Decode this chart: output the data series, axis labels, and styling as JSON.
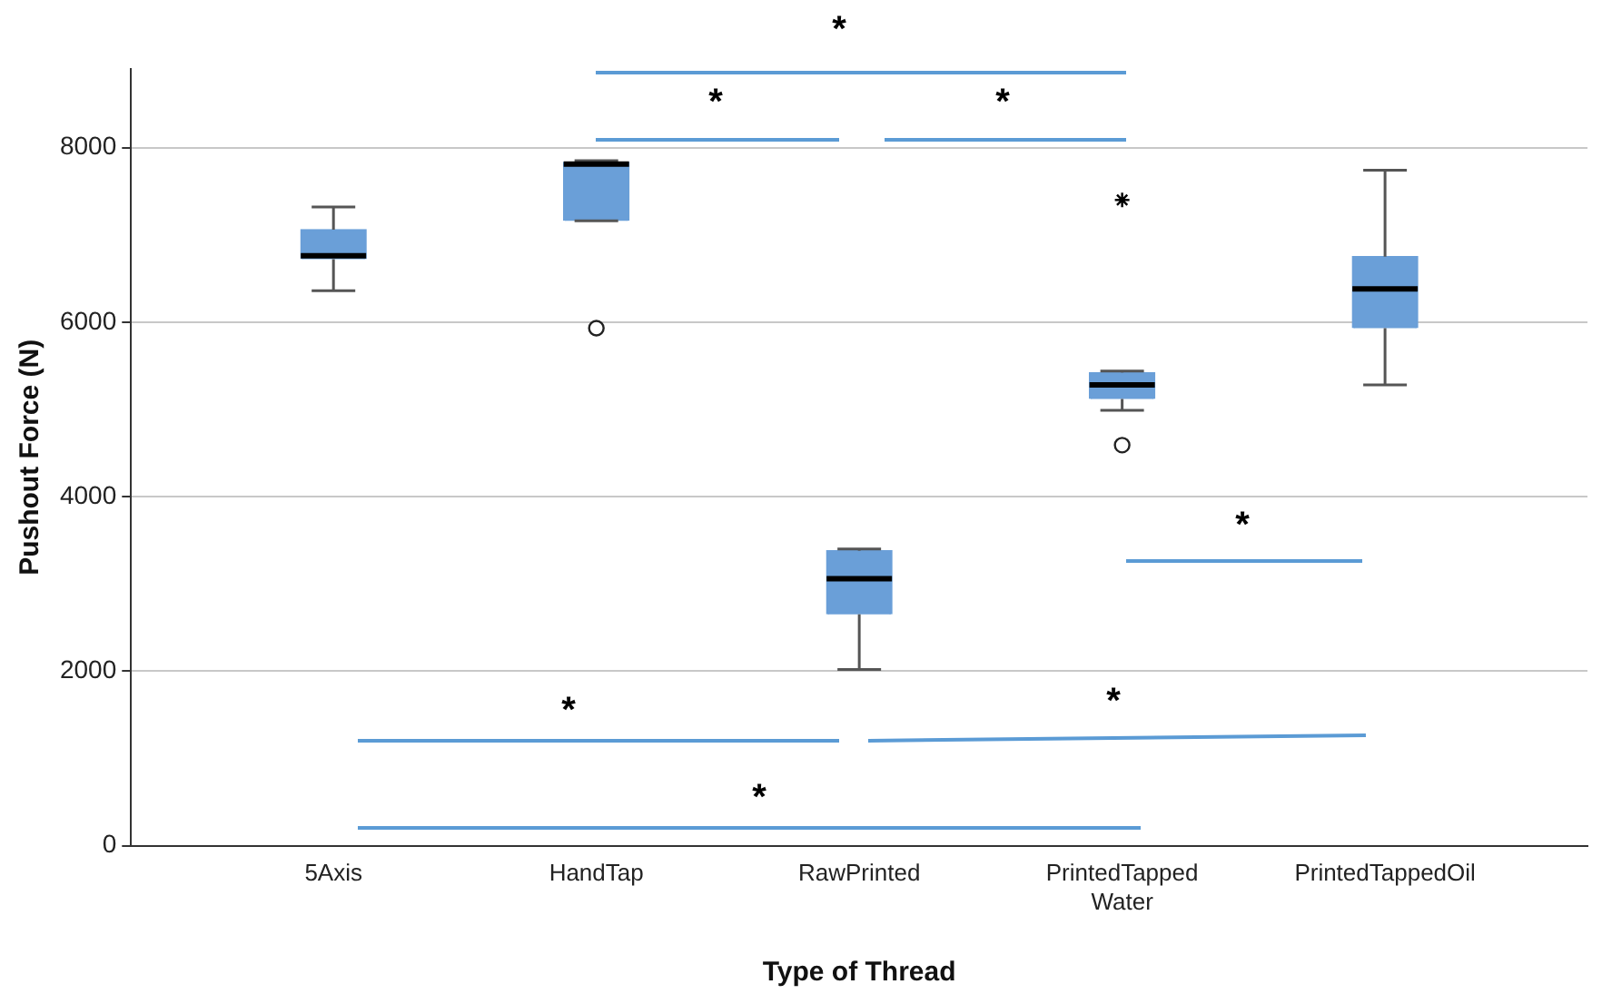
{
  "chart_data": {
    "type": "box",
    "xlabel": "Type of Thread",
    "ylabel": "Pushout Force (N)",
    "categories": [
      "5Axis",
      "HandTap",
      "RawPrinted",
      "PrintedTapped\nWater",
      "PrintedTappedOil"
    ],
    "ylim": [
      0,
      8900
    ],
    "yticks": [
      0,
      2000,
      4000,
      6000,
      8000
    ],
    "grid": "y",
    "legend": false,
    "series": [
      {
        "type": "box",
        "color": "#6a9fd8",
        "marker": "circle",
        "boxes": [
          {
            "low": 6360,
            "q1": 6720,
            "median": 6760,
            "q3": 7060,
            "high": 7320
          },
          {
            "low": 7160,
            "q1": 7160,
            "median": 7810,
            "q3": 7830,
            "high": 7850,
            "outliers": [
              5930
            ]
          },
          {
            "low": 2020,
            "q1": 2650,
            "median": 3060,
            "q3": 3380,
            "high": 3400
          },
          {
            "low": 4990,
            "q1": 5120,
            "median": 5280,
            "q3": 5420,
            "high": 5440,
            "outliers": [
              4590
            ]
          },
          {
            "low": 5280,
            "q1": 5930,
            "median": 6380,
            "q3": 6750,
            "high": 7740
          }
        ]
      },
      {
        "type": "scatter",
        "marker": "cross",
        "color": "#000000",
        "x": [
          "PrintedTapped\nWater"
        ],
        "values": [
          7400
        ]
      }
    ],
    "annotations": [
      "*",
      "*",
      "*",
      "*",
      "*",
      "*",
      "*"
    ]
  }
}
